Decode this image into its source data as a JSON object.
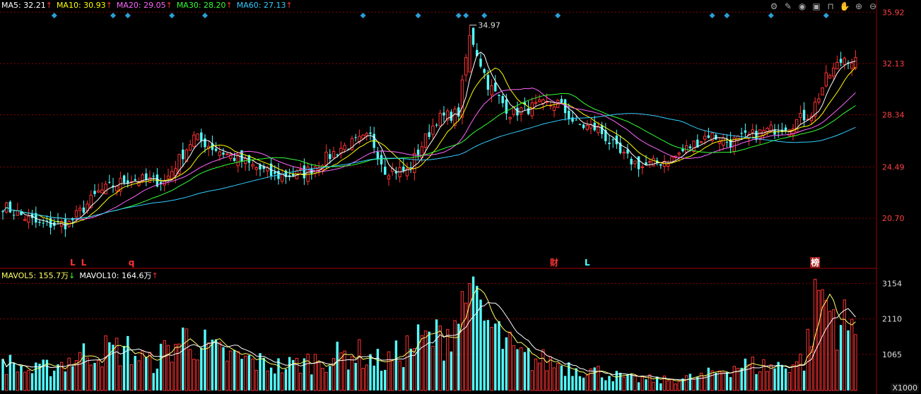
{
  "price_legend": [
    {
      "label": "MA5",
      "value": "32.21",
      "arrow": "↑",
      "color": "#ffffff"
    },
    {
      "label": "MA10",
      "value": "30.93",
      "arrow": "↑",
      "color": "#ffff00"
    },
    {
      "label": "MA20",
      "value": "29.05",
      "arrow": "↑",
      "color": "#ff66ff"
    },
    {
      "label": "MA30",
      "value": "28.20",
      "arrow": "↑",
      "color": "#33ff33"
    },
    {
      "label": "MA60",
      "value": "27.13",
      "arrow": "↑",
      "color": "#33ccff"
    }
  ],
  "volume_legend": [
    {
      "label": "MAVOL5",
      "value": "155.7万",
      "arrow": "↓",
      "color": "#ffff66"
    },
    {
      "label": "MAVOL10",
      "value": "164.6万",
      "arrow": "↑",
      "color": "#ffffff"
    }
  ],
  "toolbar_icons": [
    "gear-icon",
    "pen-icon",
    "eye-icon",
    "box-icon",
    "lock-icon",
    "hand-icon",
    "zoom-in-icon",
    "zoom-out-icon"
  ],
  "volume_unit": "X1000",
  "colors": {
    "up": "#ff3232",
    "down": "#54ffff",
    "grid": "#8b0000",
    "axis_text": "#ff4040",
    "diamond": "#2a9fd6"
  },
  "chart_data": [
    {
      "type": "candlestick",
      "y_ticks": [
        "35.92",
        "32.13",
        "28.34",
        "24.49",
        "20.70"
      ],
      "ylim": [
        17.0,
        36.3
      ],
      "peak_label": "34.97",
      "event_markers": [
        {
          "index": 19,
          "text": "L",
          "color": "#ff3232"
        },
        {
          "index": 22,
          "text": "L",
          "color": "#ff3232"
        },
        {
          "index": 35,
          "text": "q",
          "color": "#ff3232"
        },
        {
          "index": 150,
          "text": "财",
          "color": "#ff3232"
        },
        {
          "index": 159,
          "text": "L",
          "color": "#54ffff"
        },
        {
          "index": 221,
          "text": "榜",
          "color": "#ffffff",
          "bg": "#aa2222"
        }
      ],
      "diamond_indices": [
        14,
        30,
        34,
        46,
        55,
        98,
        113,
        124,
        126,
        131,
        151,
        193,
        197,
        209,
        224
      ],
      "ma_lines": [
        {
          "name": "MA5",
          "period": 5,
          "color": "#ffffff"
        },
        {
          "name": "MA10",
          "period": 10,
          "color": "#ffff00"
        },
        {
          "name": "MA20",
          "period": 20,
          "color": "#ff66ff"
        },
        {
          "name": "MA30",
          "period": 30,
          "color": "#33ff33"
        },
        {
          "name": "MA60",
          "period": 60,
          "color": "#33ccff"
        }
      ],
      "close_anchors": [
        [
          0,
          21.6
        ],
        [
          10,
          20.2
        ],
        [
          18,
          20.3
        ],
        [
          26,
          22.6
        ],
        [
          34,
          23.6
        ],
        [
          44,
          23.4
        ],
        [
          52,
          26.7
        ],
        [
          58,
          25.8
        ],
        [
          66,
          24.8
        ],
        [
          74,
          23.8
        ],
        [
          82,
          24.0
        ],
        [
          92,
          25.9
        ],
        [
          100,
          26.7
        ],
        [
          104,
          24.3
        ],
        [
          110,
          24.2
        ],
        [
          118,
          28.0
        ],
        [
          124,
          28.5
        ],
        [
          127,
          34.5
        ],
        [
          132,
          30.6
        ],
        [
          138,
          28.5
        ],
        [
          146,
          29.0
        ],
        [
          151,
          29.2
        ],
        [
          156,
          27.6
        ],
        [
          162,
          27.3
        ],
        [
          168,
          25.4
        ],
        [
          174,
          24.5
        ],
        [
          182,
          25.1
        ],
        [
          192,
          26.9
        ],
        [
          198,
          26.3
        ],
        [
          206,
          27.0
        ],
        [
          214,
          27.6
        ],
        [
          220,
          28.5
        ],
        [
          224,
          31.0
        ],
        [
          229,
          32.6
        ],
        [
          232,
          32.3
        ]
      ]
    },
    {
      "type": "bar",
      "y_ticks": [
        "3154",
        "2110",
        "1065"
      ],
      "ylim": [
        0,
        3350
      ],
      "volume_anchors": [
        [
          0,
          850
        ],
        [
          8,
          550
        ],
        [
          16,
          800
        ],
        [
          24,
          1150
        ],
        [
          34,
          1200
        ],
        [
          40,
          800
        ],
        [
          50,
          1600
        ],
        [
          58,
          1100
        ],
        [
          66,
          900
        ],
        [
          76,
          700
        ],
        [
          86,
          900
        ],
        [
          96,
          1100
        ],
        [
          104,
          800
        ],
        [
          112,
          1400
        ],
        [
          120,
          1600
        ],
        [
          126,
          2600
        ],
        [
          130,
          2150
        ],
        [
          140,
          1000
        ],
        [
          150,
          800
        ],
        [
          160,
          600
        ],
        [
          170,
          350
        ],
        [
          180,
          300
        ],
        [
          190,
          400
        ],
        [
          200,
          750
        ],
        [
          210,
          700
        ],
        [
          218,
          900
        ],
        [
          222,
          2900
        ],
        [
          226,
          2250
        ],
        [
          232,
          1650
        ]
      ],
      "ma_lines": [
        {
          "name": "MAVOL5",
          "period": 5,
          "color": "#ffff66"
        },
        {
          "name": "MAVOL10",
          "period": 10,
          "color": "#ffffff"
        }
      ]
    }
  ]
}
